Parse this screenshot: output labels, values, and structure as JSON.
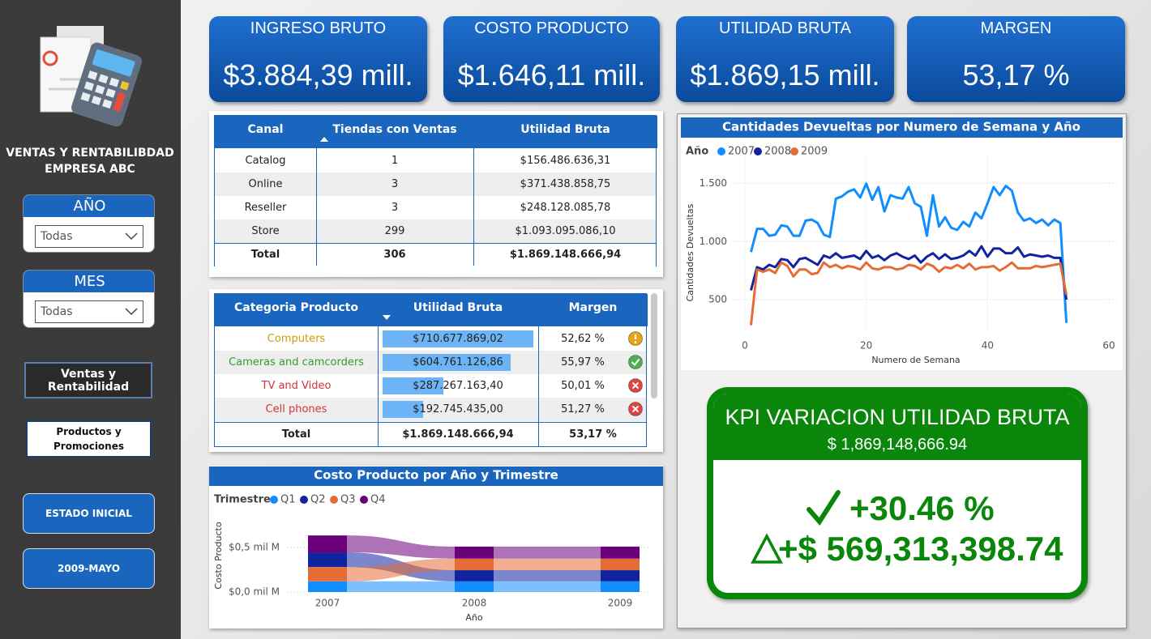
{
  "sidebar": {
    "title": "VENTAS Y RENTABILIBDAD EMPRESA ABC",
    "slicers": [
      {
        "label": "AÑO",
        "value": "Todas"
      },
      {
        "label": "MES",
        "value": "Todas"
      }
    ],
    "nav_buttons": [
      "Ventas y Rentabilidad",
      "Productos y Promociones"
    ],
    "bookmarks": [
      "ESTADO INICIAL",
      "2009-MAYO"
    ]
  },
  "kpi_cards": [
    {
      "title": "INGRESO BRUTO",
      "value": "$3.884,39 mill."
    },
    {
      "title": "COSTO PRODUCTO",
      "value": "$1.646,11 mill."
    },
    {
      "title": "UTILIDAD BRUTA",
      "value": "$1.869,15 mill."
    },
    {
      "title": "MARGEN",
      "value": "53,17 %"
    }
  ],
  "canal_table": {
    "columns": [
      "Canal",
      "Tiendas con Ventas",
      "Utilidad Bruta"
    ],
    "rows": [
      [
        "Catalog",
        "1",
        "$156.486.636,31"
      ],
      [
        "Online",
        "3",
        "$371.438.858,75"
      ],
      [
        "Reseller",
        "3",
        "$248.128.085,78"
      ],
      [
        "Store",
        "299",
        "$1.093.095.086,10"
      ]
    ],
    "total": [
      "Total",
      "306",
      "$1.869.148.666,94"
    ]
  },
  "categoria_table": {
    "columns": [
      "Categoria Producto",
      "Utilidad Bruta",
      "Margen"
    ],
    "bar_color": "#6db4f6",
    "rows": [
      {
        "name": "Computers",
        "color": "#c9a000",
        "utilidad": 710677869.02,
        "utilidad_label": "$710.677.869,02",
        "margen": "52,62 %"
      },
      {
        "name": "Cameras and camcorders",
        "color": "#2e9e2e",
        "utilidad": 604761126.86,
        "utilidad_label": "$604.761.126,86",
        "margen": "55,97 %"
      },
      {
        "name": "TV and Video",
        "color": "#d13438",
        "utilidad": 287267163.4,
        "utilidad_label": "$287.267.163,40",
        "margen": "50,01 %"
      },
      {
        "name": "Cell phones",
        "color": "#d13438",
        "utilidad": 192745435.0,
        "utilidad_label": "$192.745.435,00",
        "margen": "51,27 %"
      }
    ],
    "total": [
      "Total",
      "$1.869.148.666,94",
      "53,17 %"
    ]
  },
  "kpi_variacion": {
    "title": "KPI VARIACION UTILIDAD BRUTA",
    "subtitle": "$ 1,869,148,666.94",
    "percent": "+30.46 %",
    "delta": "+$ 569,313,398.74",
    "color": "#0a870a"
  },
  "chart_data": [
    {
      "type": "line",
      "title": "Cantidades Devueltas por Numero de Semana y Año",
      "legend_title": "Año",
      "x_label": "Numero de Semana",
      "y_label": "Cantidades Devueltas",
      "x": [
        1,
        2,
        3,
        4,
        5,
        6,
        7,
        8,
        9,
        10,
        11,
        12,
        13,
        14,
        15,
        16,
        17,
        18,
        19,
        20,
        21,
        22,
        23,
        24,
        25,
        26,
        27,
        28,
        29,
        30,
        31,
        32,
        33,
        34,
        35,
        36,
        37,
        38,
        39,
        40,
        41,
        42,
        43,
        44,
        45,
        46,
        47,
        48,
        49,
        50,
        51,
        52,
        53
      ],
      "series": [
        {
          "name": "2007",
          "color": "#118dff",
          "values": [
            910,
            1110,
            1110,
            1050,
            1060,
            1140,
            1130,
            1050,
            1050,
            1180,
            1190,
            1160,
            1060,
            1040,
            1370,
            1390,
            1430,
            1450,
            1380,
            1500,
            1360,
            1470,
            1260,
            1400,
            1380,
            1370,
            1470,
            1330,
            1300,
            1050,
            1400,
            1130,
            1210,
            1120,
            1100,
            1170,
            1130,
            1250,
            1200,
            1330,
            1470,
            1400,
            1480,
            1440,
            1250,
            1180,
            1200,
            1160,
            1190,
            1140,
            1190,
            1160,
            300
          ]
        },
        {
          "name": "2008",
          "color": "#12239e",
          "values": [
            580,
            780,
            760,
            800,
            780,
            850,
            840,
            780,
            850,
            860,
            830,
            800,
            880,
            860,
            900,
            860,
            870,
            880,
            850,
            920,
            860,
            880,
            840,
            880,
            900,
            870,
            850,
            880,
            820,
            870,
            900,
            850,
            890,
            850,
            860,
            880,
            920,
            880,
            960,
            870,
            940,
            940,
            900,
            900,
            950,
            870,
            890,
            880,
            870,
            880,
            860,
            860,
            500
          ]
        },
        {
          "name": "2009",
          "color": "#e66c37",
          "values": [
            280,
            760,
            740,
            760,
            730,
            820,
            790,
            700,
            760,
            760,
            720,
            730,
            820,
            780,
            800,
            770,
            790,
            780,
            760,
            820,
            770,
            760,
            780,
            780,
            760,
            770,
            800,
            790,
            760,
            810,
            790,
            740,
            780,
            770,
            800,
            770,
            810,
            760,
            780,
            780,
            790,
            750,
            780,
            820,
            770,
            770,
            770,
            790,
            780,
            790,
            800,
            810,
            540
          ]
        }
      ],
      "xlim": [
        0,
        60
      ],
      "xticks": [
        0,
        20,
        40,
        60
      ],
      "ylim": [
        200,
        1700
      ],
      "yticks": [
        500,
        {
          "value": 1000,
          "label": "1.000"
        },
        {
          "value": 1500,
          "label": "1.500"
        }
      ],
      "grid": true
    },
    {
      "type": "ribbon",
      "title": "Costo Producto por Año y Trimestre",
      "legend_title": "Trimestre",
      "x_label": "Año",
      "y_label": "Costo Producto",
      "categories": [
        "2007",
        "2008",
        "2009"
      ],
      "series": [
        {
          "name": "Q1",
          "color": "#118dff",
          "values": [
            0.12,
            0.12,
            0.12
          ]
        },
        {
          "name": "Q2",
          "color": "#12239e",
          "values": [
            0.165,
            0.125,
            0.125
          ]
        },
        {
          "name": "Q3",
          "color": "#e66c37",
          "values": [
            0.16,
            0.13,
            0.13
          ]
        },
        {
          "name": "Q4",
          "color": "#6b007b",
          "values": [
            0.19,
            0.135,
            0.135
          ]
        }
      ],
      "ylim": [
        0,
        0.7
      ],
      "yticks": [
        {
          "value": 0,
          "label": "$0,0 mil M"
        },
        {
          "value": 0.5,
          "label": "$0,5 mil M"
        }
      ],
      "grid": true
    }
  ]
}
